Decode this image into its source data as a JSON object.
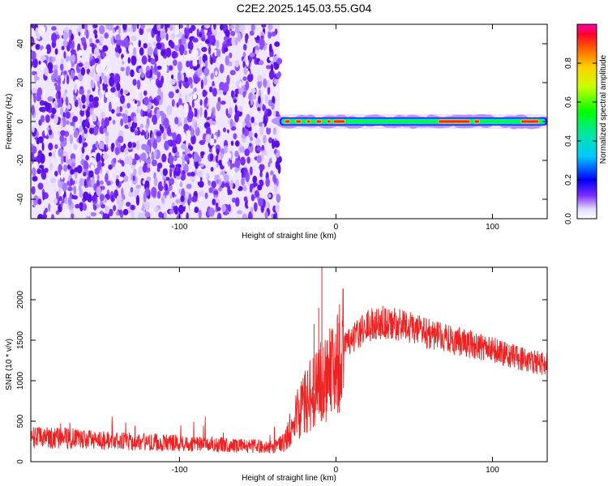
{
  "figure": {
    "title": "C2E2.2025.145.03.55.G04"
  },
  "chart_data": [
    {
      "type": "heatmap",
      "xlabel": "Height of straight line (km)",
      "ylabel": "Frequency (Hz)",
      "xlim": [
        -195,
        135
      ],
      "ylim": [
        -50,
        50
      ],
      "x_ticks": [
        -100,
        0,
        100
      ],
      "x_tick_labels": [
        "-100",
        "0",
        "100"
      ],
      "y_ticks": [
        -40,
        -20,
        0,
        20,
        40
      ],
      "y_tick_labels": [
        "-40",
        "-20",
        "0",
        "20",
        "40"
      ],
      "noise_region_x": [
        -195,
        -36
      ],
      "signal_line": {
        "x_range": [
          -36,
          135
        ],
        "frequency_hz": 0,
        "hot_segments": [
          [
            -33,
            -29
          ],
          [
            -26,
            -22
          ],
          [
            -19,
            -16
          ],
          [
            -13,
            -9
          ],
          [
            -6,
            -3
          ],
          [
            -2,
            6
          ],
          [
            65,
            86
          ],
          [
            88,
            92
          ],
          [
            118,
            130
          ]
        ]
      },
      "colorbar": {
        "label": "Normalized spectral amplitude",
        "range": [
          0,
          1
        ],
        "ticks": [
          0.0,
          0.2,
          0.4,
          0.6,
          0.8
        ],
        "tick_labels": [
          "0.0",
          "0.2",
          "0.4",
          "0.6",
          "0.8"
        ]
      },
      "grid": false
    },
    {
      "type": "line",
      "xlabel": "Height of straight line (km)",
      "ylabel": "SNR (10 * v/v)",
      "xlim": [
        -195,
        135
      ],
      "ylim": [
        0,
        2400
      ],
      "x_ticks": [
        -100,
        0,
        100
      ],
      "x_tick_labels": [
        "-100",
        "0",
        "100"
      ],
      "y_ticks": [
        0,
        500,
        1000,
        1500,
        2000
      ],
      "y_tick_labels": [
        "0",
        "500",
        "1000",
        "1500",
        "2000"
      ],
      "color": "#ee2222",
      "series": [
        {
          "x": [
            -195,
            -175,
            -155,
            -135,
            -115,
            -95,
            -75,
            -55,
            -40,
            -33,
            -28,
            -23,
            -18,
            -14,
            -10,
            -6,
            -3,
            0,
            5,
            10,
            15,
            20,
            25,
            30,
            40,
            50,
            60,
            70,
            80,
            90,
            100,
            110,
            120,
            135
          ],
          "values": [
            300,
            290,
            270,
            250,
            240,
            230,
            210,
            195,
            180,
            240,
            450,
            650,
            800,
            880,
            950,
            1050,
            1150,
            1300,
            1400,
            1500,
            1600,
            1680,
            1700,
            1720,
            1690,
            1640,
            1570,
            1520,
            1480,
            1430,
            1380,
            1320,
            1260,
            1200
          ]
        }
      ],
      "spikes": [
        {
          "x": -9,
          "value": 2450
        },
        {
          "x": -11,
          "value": 1900
        },
        {
          "x": -14,
          "value": 1700
        }
      ],
      "grid": false
    }
  ]
}
